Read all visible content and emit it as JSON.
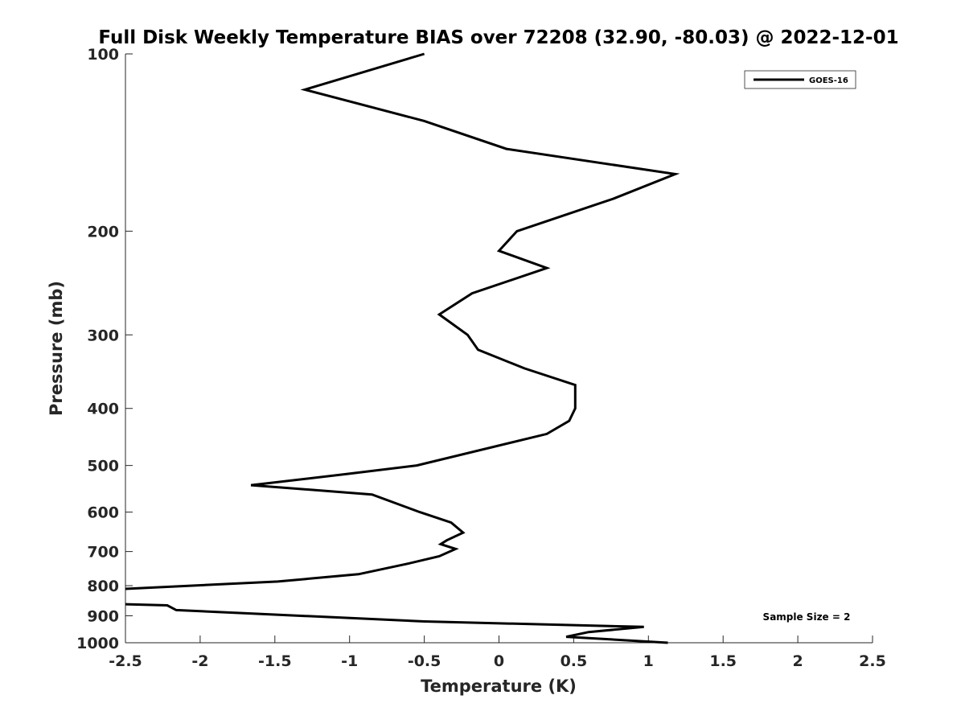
{
  "chart_data": {
    "type": "line",
    "title": "Full Disk Weekly Temperature BIAS over 72208 (32.90, -80.03) @ 2022-12-01",
    "xlabel": "Temperature (K)",
    "ylabel": "Pressure (mb)",
    "xlim": [
      -2.5,
      2.5
    ],
    "ylim": [
      100,
      1000
    ],
    "y_scale": "log",
    "y_reversed": true,
    "grid": false,
    "legend_position": "top-right",
    "x_ticks": [
      "-2.5",
      "-2",
      "-1.5",
      "-1",
      "-0.5",
      "0",
      "0.5",
      "1",
      "1.5",
      "2",
      "2.5"
    ],
    "y_ticks": [
      "100",
      "200",
      "300",
      "400",
      "500",
      "600",
      "700",
      "800",
      "900",
      "1000"
    ],
    "annotation": "Sample Size = 2",
    "line_color": "#000000",
    "series": [
      {
        "name": "GOES-16",
        "x": [
          -0.5,
          -1.3,
          -0.5,
          0.05,
          1.18,
          0.77,
          0.12,
          0.0,
          0.32,
          -0.18,
          -0.4,
          -0.21,
          -0.14,
          0.17,
          0.51,
          0.51,
          0.47,
          0.32,
          -0.55,
          -1.02,
          -1.66,
          -0.85,
          -0.53,
          -0.32,
          -0.24,
          -0.35,
          -0.39,
          -0.29,
          -0.4,
          -0.61,
          -0.94,
          -1.48,
          -2.5
        ],
        "y": [
          100,
          115,
          130,
          145,
          160,
          176,
          200,
          216,
          231,
          255,
          277,
          300,
          318,
          342,
          365,
          400,
          420,
          442,
          500,
          517,
          540,
          560,
          600,
          625,
          650,
          670,
          680,
          693,
          713,
          734,
          765,
          787,
          810
        ]
      },
      {
        "name": "",
        "x": [
          -2.5,
          -2.22,
          -2.16,
          -0.5,
          0.97,
          0.6,
          0.45,
          1.13
        ],
        "y": [
          860,
          864,
          880,
          920,
          940,
          959,
          977,
          1000
        ]
      }
    ]
  }
}
